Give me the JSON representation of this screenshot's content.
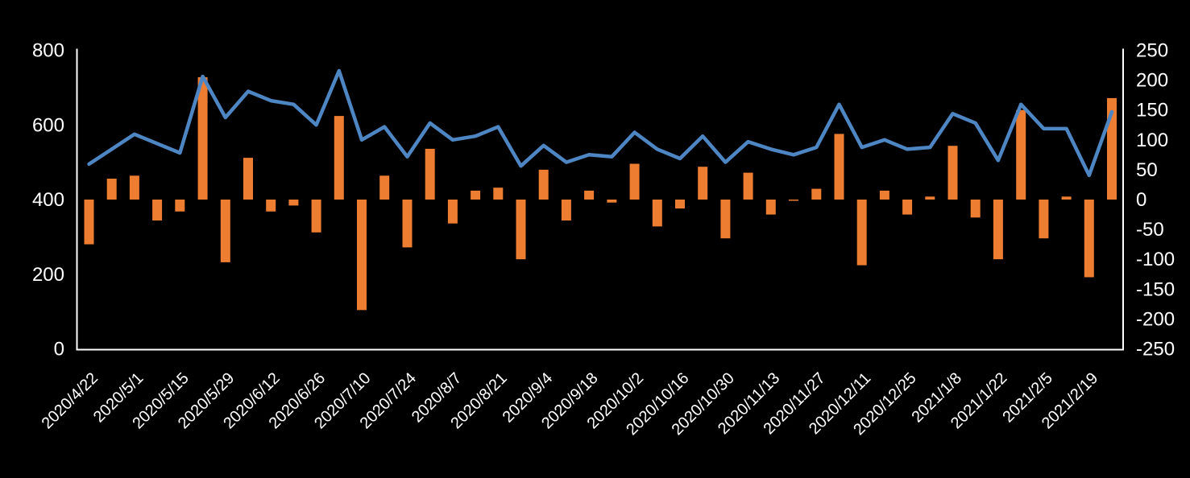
{
  "chart_data": {
    "type": "combo",
    "title": "",
    "background_color": "#000000",
    "text_color": "#ffffff",
    "axis_line_color": "#ffffff",
    "grid": false,
    "legend": "none",
    "x_labels": [
      "2020/4/22",
      "2020/5/1",
      "2020/5/15",
      "2020/5/29",
      "2020/6/12",
      "2020/6/26",
      "2020/7/10",
      "2020/7/24",
      "2020/8/7",
      "2020/8/21",
      "2020/9/4",
      "2020/9/18",
      "2020/10/2",
      "2020/10/16",
      "2020/10/30",
      "2020/11/13",
      "2020/11/27",
      "2020/12/11",
      "2020/12/25",
      "2021/1/8",
      "2021/1/22",
      "2021/2/5",
      "2021/2/19"
    ],
    "label_every": 2,
    "n_points": 46,
    "left_axis": {
      "min": 0,
      "max": 800,
      "step": 200,
      "ticks": [
        "0",
        "200",
        "400",
        "600",
        "800"
      ]
    },
    "right_axis": {
      "min": -250,
      "max": 250,
      "step": 50,
      "ticks": [
        "-250",
        "-200",
        "-150",
        "-100",
        "-50",
        "0",
        "50",
        "100",
        "150",
        "200",
        "250"
      ]
    },
    "series": [
      {
        "name": "bars",
        "type": "bar",
        "axis": "right",
        "color": "#ed7d31",
        "values": [
          -75,
          35,
          40,
          -35,
          -20,
          205,
          -105,
          70,
          -20,
          -10,
          -55,
          140,
          -185,
          40,
          -80,
          85,
          -40,
          15,
          20,
          -100,
          50,
          -35,
          15,
          -5,
          60,
          -45,
          -15,
          55,
          -65,
          45,
          -25,
          -2,
          18,
          110,
          -110,
          15,
          -25,
          5,
          90,
          -30,
          -100,
          150,
          -65,
          5,
          -130,
          170
        ]
      },
      {
        "name": "line",
        "type": "line",
        "axis": "left",
        "color": "#4e86c4",
        "values": [
          495,
          535,
          575,
          550,
          525,
          730,
          620,
          690,
          665,
          655,
          600,
          745,
          560,
          595,
          515,
          605,
          560,
          570,
          595,
          490,
          545,
          500,
          520,
          515,
          580,
          535,
          510,
          570,
          500,
          555,
          535,
          520,
          540,
          655,
          540,
          560,
          535,
          540,
          630,
          605,
          505,
          655,
          590,
          590,
          465,
          635
        ]
      }
    ]
  }
}
